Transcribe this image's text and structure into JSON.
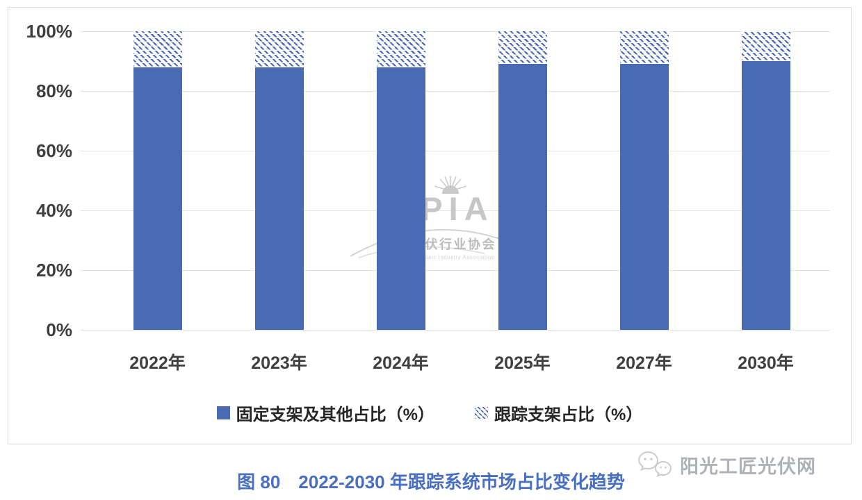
{
  "chart_data": {
    "type": "bar",
    "stacked": true,
    "categories": [
      "2022年",
      "2023年",
      "2024年",
      "2025年",
      "2027年",
      "2030年"
    ],
    "series": [
      {
        "name": "固定支架及其他占比（%）",
        "style": "solid",
        "values": [
          88,
          88,
          88,
          89,
          89,
          90
        ]
      },
      {
        "name": "跟踪支架占比（%）",
        "style": "hatched",
        "values": [
          12,
          12,
          12,
          11,
          11,
          10
        ]
      }
    ],
    "title": "",
    "xlabel": "",
    "ylabel": "",
    "ylim": [
      0,
      100
    ],
    "yticks": [
      "100%",
      "80%",
      "60%",
      "40%",
      "20%",
      "0%"
    ],
    "grid": true,
    "legend_position": "bottom"
  },
  "colors": {
    "bar_blue": "#4a6bb3",
    "gridline": "#e3e3e3",
    "axis_text": "#3f3f3f",
    "caption_blue": "#4a6fc0",
    "watermark_gray": "#c7c7c7"
  },
  "center_watermark": {
    "abbr": "CPIA",
    "name_cn": "中国光伏行业协会",
    "name_en": "China Photovoltaic Industry Association",
    "sun_icon": "sun-rays-icon"
  },
  "corner_watermark": {
    "icon": "wechat-icon",
    "text": "阳光工匠光伏网"
  },
  "caption": {
    "prefix": "图 80",
    "title": "2022-2030 年跟踪系统市场占比变化趋势"
  }
}
